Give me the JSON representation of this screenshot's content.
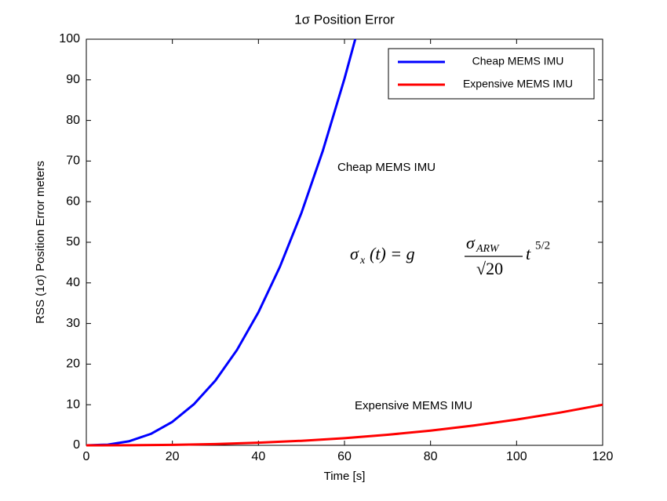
{
  "chart_data": {
    "type": "line",
    "title": "1σ Position Error",
    "xlabel": "Time [s]",
    "ylabel": "RSS (1σ) Position Error meters",
    "xlim": [
      0,
      120
    ],
    "xticks": [
      0,
      20,
      40,
      60,
      80,
      100,
      120
    ],
    "ylim": [
      0,
      100
    ],
    "yticks": [
      0,
      10,
      20,
      30,
      40,
      50,
      60,
      70,
      80,
      90,
      100
    ],
    "grid": false,
    "legend": "upper right",
    "series": [
      {
        "name": "Cheap MEMS IMU",
        "color": "#0000ff",
        "x": [
          0,
          5,
          10,
          15,
          20,
          25,
          30,
          35,
          40,
          45,
          50,
          55,
          60,
          62.5
        ],
        "values": [
          0,
          0.18,
          1.02,
          2.82,
          5.79,
          10.12,
          15.96,
          23.47,
          32.77,
          43.99,
          57.24,
          72.64,
          90.29,
          100
        ]
      },
      {
        "name": "Expensive MEMS IMU",
        "color": "#ff0000",
        "x": [
          0,
          10,
          20,
          30,
          40,
          50,
          60,
          70,
          80,
          90,
          100,
          110,
          120
        ],
        "values": [
          0,
          0.02,
          0.11,
          0.31,
          0.64,
          1.12,
          1.77,
          2.6,
          3.63,
          4.87,
          6.34,
          8.05,
          10.0
        ]
      }
    ],
    "annotations": [
      "Cheap MEMS IMU",
      "Expensive MEMS IMU"
    ],
    "equation": {
      "lhs": "σ",
      "lhs_sub": "x",
      "lhs_rest": "(t) = g",
      "num": "σ",
      "num_sub": "ARW",
      "den": "√20",
      "t": "t",
      "exp": "5/2"
    }
  }
}
